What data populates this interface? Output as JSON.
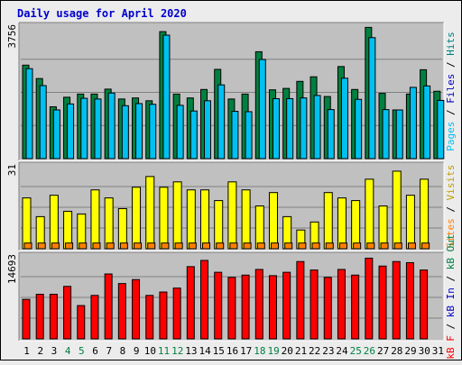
{
  "title": "Daily usage for April 2020",
  "colors": {
    "page_bg": "#ececec",
    "title": "#0000cc",
    "panel_bg": "#c0c0c0",
    "grid": "#808080",
    "pages": "#008040",
    "files": "#00c0f0",
    "hits": "#008080",
    "sites": "#ff8000",
    "visits": "#ffff00",
    "kb_in": "#0000c0",
    "kb_out": "#008040",
    "kb_f": "#ff0000",
    "sep": "#000000",
    "weekend": "#008040",
    "weekday": "#000000"
  },
  "chart_data": [
    {
      "type": "bar",
      "panel": "hits",
      "ymax_label": "3756",
      "ylim": [
        0,
        3756
      ],
      "legend": [
        "Pages",
        "Files",
        "Hits"
      ],
      "categories": [
        "1",
        "2",
        "3",
        "4",
        "5",
        "6",
        "7",
        "8",
        "9",
        "10",
        "11",
        "12",
        "13",
        "14",
        "15",
        "16",
        "17",
        "18",
        "19",
        "20",
        "21",
        "22",
        "23",
        "24",
        "25",
        "26",
        "27",
        "28",
        "29",
        "30",
        "31"
      ],
      "series": [
        {
          "name": "Hits",
          "values": [
            2650,
            2270,
            1470,
            1740,
            1830,
            1830,
            1970,
            1690,
            1720,
            1640,
            3600,
            1830,
            1720,
            1960,
            2530,
            1690,
            1830,
            3030,
            1950,
            1990,
            2190,
            2320,
            1760,
            2610,
            1960,
            3720,
            1850,
            1380,
            1830,
            2520,
            1910
          ],
          "note": "green bars"
        },
        {
          "name": "Files",
          "values": [
            2550,
            2070,
            1380,
            1550,
            1710,
            1690,
            1860,
            1500,
            1560,
            1540,
            3500,
            1510,
            1350,
            1640,
            2090,
            1340,
            1330,
            2810,
            1700,
            1700,
            1720,
            1790,
            1390,
            2280,
            1680,
            3430,
            1390,
            1380,
            2020,
            2060,
            1650
          ]
        }
      ]
    },
    {
      "type": "bar",
      "panel": "visits",
      "ymax_label": "31",
      "ylim": [
        0,
        31
      ],
      "legend": [
        "Sites",
        "Visits"
      ],
      "categories": [
        "1",
        "2",
        "3",
        "4",
        "5",
        "6",
        "7",
        "8",
        "9",
        "10",
        "11",
        "12",
        "13",
        "14",
        "15",
        "16",
        "17",
        "18",
        "19",
        "20",
        "21",
        "22",
        "23",
        "24",
        "25",
        "26",
        "27",
        "28",
        "29",
        "30",
        "31"
      ],
      "series": [
        {
          "name": "Visits",
          "values": [
            19,
            12,
            20,
            14,
            13,
            22,
            19,
            15,
            23,
            27,
            23,
            25,
            22,
            22,
            18,
            25,
            22,
            16,
            21,
            12,
            7,
            10,
            21,
            19,
            18,
            26,
            16,
            29,
            20,
            26,
            0
          ]
        },
        {
          "name": "Sites",
          "values": [
            1.8,
            1.8,
            1.8,
            1.8,
            1.8,
            1.8,
            1.8,
            1.8,
            1.8,
            1.8,
            1.8,
            1.8,
            1.8,
            1.8,
            1.8,
            1.8,
            1.8,
            1.8,
            1.8,
            1.8,
            1.8,
            1.8,
            1.8,
            1.8,
            1.8,
            1.8,
            1.8,
            1.8,
            1.8,
            1.8,
            0
          ]
        }
      ]
    },
    {
      "type": "bar",
      "panel": "kbytes",
      "ymax_label": "14693",
      "ylim": [
        0,
        14693
      ],
      "legend": [
        "kB F",
        "kB In",
        "kB Out"
      ],
      "categories": [
        "1",
        "2",
        "3",
        "4",
        "5",
        "6",
        "7",
        "8",
        "9",
        "10",
        "11",
        "12",
        "13",
        "14",
        "15",
        "16",
        "17",
        "18",
        "19",
        "20",
        "21",
        "22",
        "23",
        "24",
        "25",
        "26",
        "27",
        "28",
        "29",
        "30",
        "31"
      ],
      "series": [
        {
          "name": "kB F",
          "values": [
            7000,
            7900,
            7900,
            9300,
            5900,
            7700,
            11500,
            9800,
            10500,
            7700,
            8300,
            9000,
            12800,
            13900,
            11800,
            10900,
            11300,
            12300,
            11200,
            11800,
            13700,
            12200,
            10900,
            12300,
            11300,
            14300,
            12900,
            13700,
            13500,
            12200,
            0
          ]
        }
      ]
    }
  ]
}
